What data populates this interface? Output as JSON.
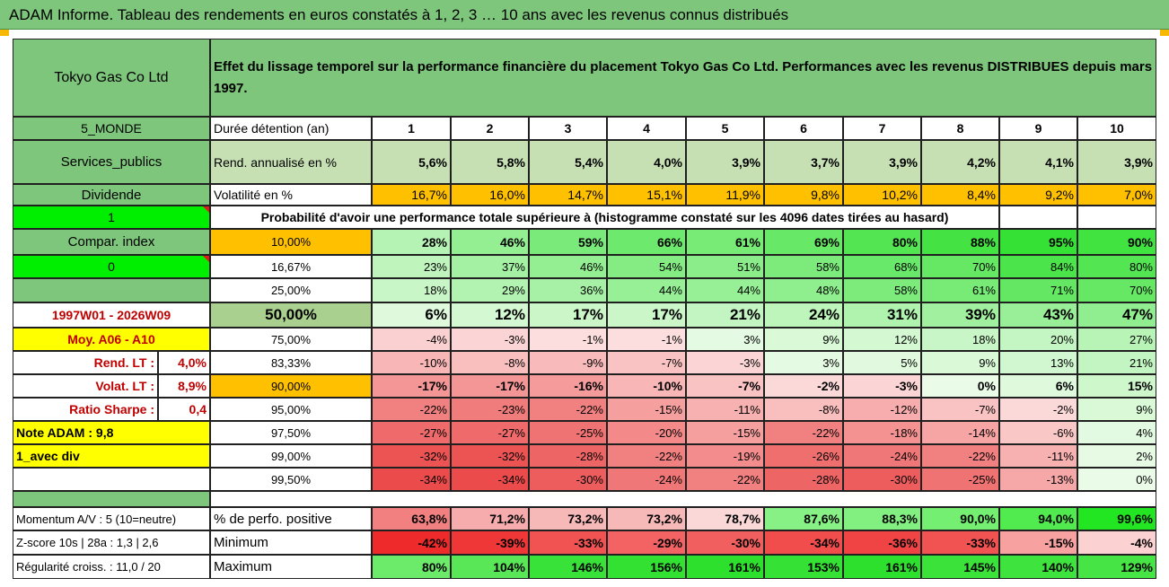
{
  "title": "ADAM Informe. Tableau des rendements en euros constatés à 1, 2, 3 … 10 ans avec les revenus connus distribués",
  "colors": {
    "green_header": "#7dc67b",
    "light_green": "#c6e0b4",
    "orange": "#ffc000",
    "yellow": "#ffff00",
    "bright_green": "#00ee00",
    "dark_red": "#c00000"
  },
  "left_panel": {
    "company": "Tokyo Gas Co Ltd",
    "zone": "5_MONDE",
    "sector": "Services_publics",
    "dividend_label": "Dividende",
    "selector_1": "1",
    "compar_index_label": "Compar. index",
    "selector_0": "0",
    "period": "1997W01 - 2026W09",
    "moyenne": "Moy. A06 - A10",
    "rend_lt_label": "Rend. LT :",
    "rend_lt_value": "4,0%",
    "volat_lt_label": "Volat. LT :",
    "volat_lt_value": "8,9%",
    "sharpe_label": "Ratio Sharpe :",
    "sharpe_value": "0,4",
    "note_adam": "Note ADAM : 9,8",
    "avec_div": "1_avec div"
  },
  "header_text": "Effet du lissage temporel sur la performance financière du placement Tokyo Gas Co Ltd. Performances avec les revenus DISTRIBUES depuis mars 1997.",
  "rows": {
    "duree_label": "Durée détention (an)",
    "years": [
      "1",
      "2",
      "3",
      "4",
      "5",
      "6",
      "7",
      "8",
      "9",
      "10"
    ],
    "rend_label": "Rend. annualisé en %",
    "rend_values": [
      "5,6%",
      "5,8%",
      "5,4%",
      "4,0%",
      "3,9%",
      "3,7%",
      "3,9%",
      "4,2%",
      "4,1%",
      "3,9%"
    ],
    "vol_label": "Volatilité en %",
    "vol_values": [
      "16,7%",
      "16,0%",
      "14,7%",
      "15,1%",
      "11,9%",
      "9,8%",
      "10,2%",
      "8,4%",
      "9,2%",
      "7,0%"
    ],
    "prob_text": "Probabilité d'avoir une performance totale supérieure à (histogramme constaté sur les 4096 dates tirées au hasard)"
  },
  "percentiles": [
    {
      "label": "10,00%",
      "values": [
        "28%",
        "46%",
        "59%",
        "66%",
        "61%",
        "69%",
        "80%",
        "88%",
        "95%",
        "90%"
      ]
    },
    {
      "label": "16,67%",
      "values": [
        "23%",
        "37%",
        "46%",
        "54%",
        "51%",
        "58%",
        "68%",
        "70%",
        "84%",
        "80%"
      ]
    },
    {
      "label": "25,00%",
      "values": [
        "18%",
        "29%",
        "36%",
        "44%",
        "44%",
        "48%",
        "58%",
        "61%",
        "71%",
        "70%"
      ]
    },
    {
      "label": "50,00%",
      "values": [
        "6%",
        "12%",
        "17%",
        "17%",
        "21%",
        "24%",
        "31%",
        "39%",
        "43%",
        "47%"
      ]
    },
    {
      "label": "75,00%",
      "values": [
        "-4%",
        "-3%",
        "-1%",
        "-1%",
        "3%",
        "9%",
        "12%",
        "18%",
        "20%",
        "27%"
      ]
    },
    {
      "label": "83,33%",
      "values": [
        "-10%",
        "-8%",
        "-9%",
        "-7%",
        "-3%",
        "3%",
        "5%",
        "9%",
        "13%",
        "21%"
      ]
    },
    {
      "label": "90,00%",
      "values": [
        "-17%",
        "-17%",
        "-16%",
        "-10%",
        "-7%",
        "-2%",
        "-3%",
        "0%",
        "6%",
        "15%"
      ]
    },
    {
      "label": "95,00%",
      "values": [
        "-22%",
        "-23%",
        "-22%",
        "-15%",
        "-11%",
        "-8%",
        "-12%",
        "-7%",
        "-2%",
        "9%"
      ]
    },
    {
      "label": "97,50%",
      "values": [
        "-27%",
        "-27%",
        "-25%",
        "-20%",
        "-15%",
        "-22%",
        "-18%",
        "-14%",
        "-6%",
        "4%"
      ]
    },
    {
      "label": "99,00%",
      "values": [
        "-32%",
        "-32%",
        "-28%",
        "-22%",
        "-19%",
        "-26%",
        "-24%",
        "-22%",
        "-11%",
        "2%"
      ]
    },
    {
      "label": "99,50%",
      "values": [
        "-34%",
        "-34%",
        "-30%",
        "-24%",
        "-22%",
        "-28%",
        "-30%",
        "-25%",
        "-13%",
        "0%"
      ]
    }
  ],
  "bottom": {
    "momentum_label": "Momentum A/V : 5 (10=neutre)",
    "positive_label": "% de perfo. positive",
    "positive_values": [
      "63,8%",
      "71,2%",
      "73,2%",
      "73,2%",
      "78,7%",
      "87,6%",
      "88,3%",
      "90,0%",
      "94,0%",
      "99,6%"
    ],
    "zscore_label": "Z-score 10s | 28a : 1,3 | 2,6",
    "min_label": "Minimum",
    "min_values": [
      "-42%",
      "-39%",
      "-33%",
      "-29%",
      "-30%",
      "-34%",
      "-36%",
      "-33%",
      "-15%",
      "-4%"
    ],
    "regularite_label": "Régularité croiss. : 11,0 / 20",
    "max_label": "Maximum",
    "max_values": [
      "80%",
      "104%",
      "146%",
      "156%",
      "161%",
      "153%",
      "161%",
      "145%",
      "140%",
      "129%"
    ]
  }
}
